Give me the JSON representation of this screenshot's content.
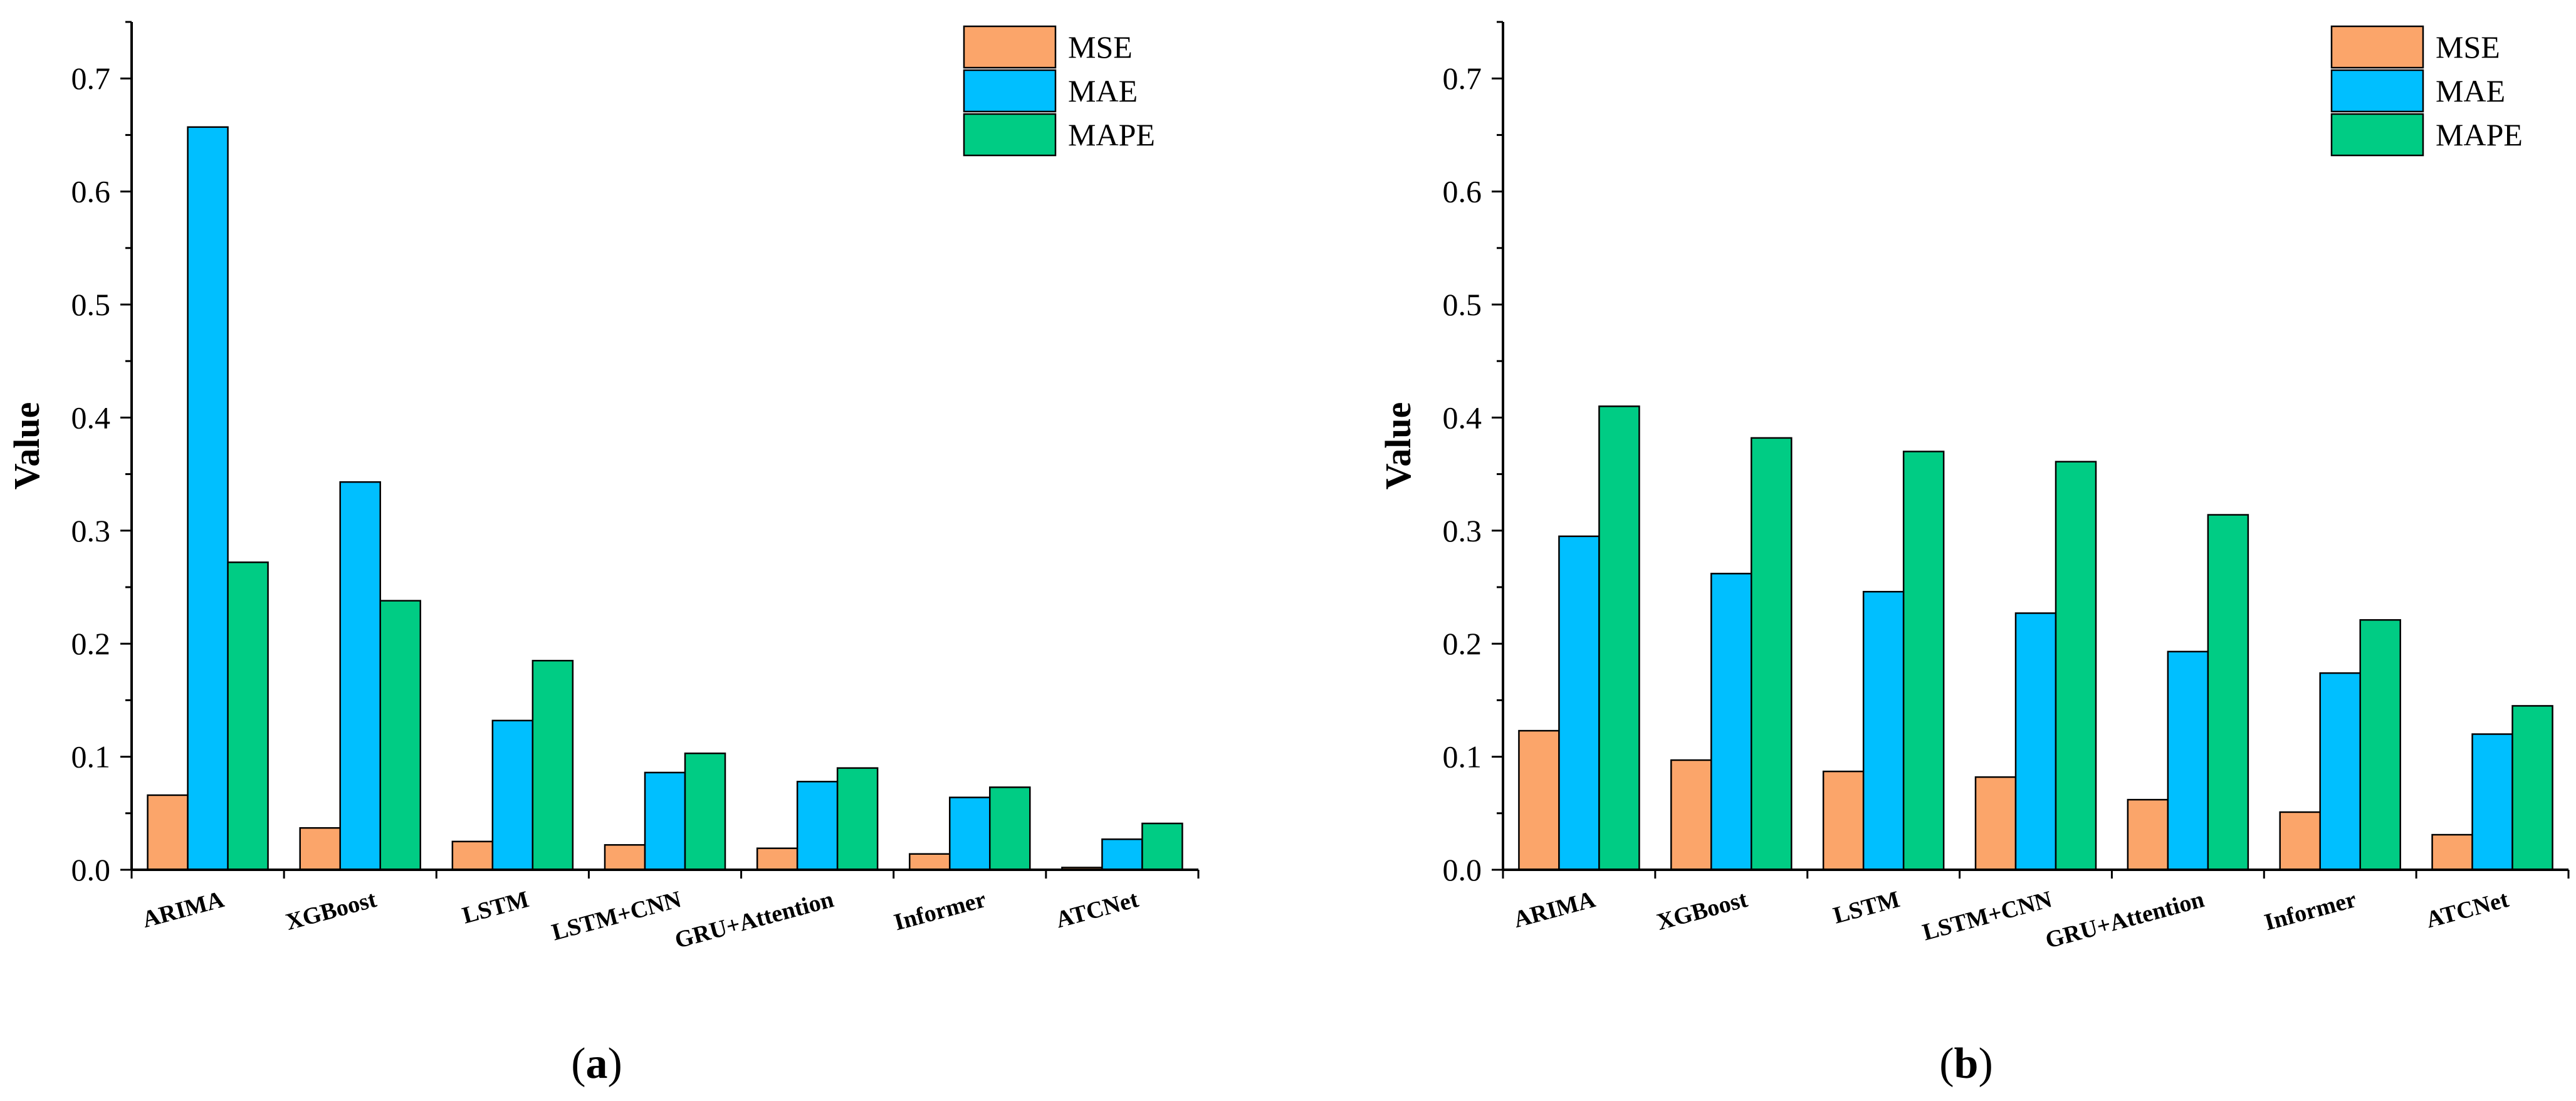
{
  "colors": {
    "MSE": "#FBA56A",
    "MAE": "#00BFFF",
    "MAPE": "#00CC84"
  },
  "chart_data": [
    {
      "type": "bar",
      "caption_letter": "a",
      "categories": [
        "ARIMA",
        "XGBoost",
        "LSTM",
        "LSTM+CNN",
        "GRU+Attention",
        "Informer",
        "ATCNet"
      ],
      "series": [
        {
          "name": "MSE",
          "values": [
            0.066,
            0.037,
            0.025,
            0.022,
            0.019,
            0.014,
            0.002
          ]
        },
        {
          "name": "MAE",
          "values": [
            0.657,
            0.343,
            0.132,
            0.086,
            0.078,
            0.064,
            0.027
          ]
        },
        {
          "name": "MAPE",
          "values": [
            0.272,
            0.238,
            0.185,
            0.103,
            0.09,
            0.073,
            0.041
          ]
        }
      ],
      "ylabel": "Value",
      "xlabel": "",
      "ylim": [
        0,
        0.75
      ],
      "yticks": [
        0.0,
        0.1,
        0.2,
        0.3,
        0.4,
        0.5,
        0.6,
        0.7
      ],
      "ytick_labels": [
        "0.0",
        "0.1",
        "0.2",
        "0.3",
        "0.4",
        "0.5",
        "0.6",
        "0.7"
      ],
      "legend": "top-right"
    },
    {
      "type": "bar",
      "caption_letter": "b",
      "categories": [
        "ARIMA",
        "XGBoost",
        "LSTM",
        "LSTM+CNN",
        "GRU+Attention",
        "Informer",
        "ATCNet"
      ],
      "series": [
        {
          "name": "MSE",
          "values": [
            0.123,
            0.097,
            0.087,
            0.082,
            0.062,
            0.051,
            0.031
          ]
        },
        {
          "name": "MAE",
          "values": [
            0.295,
            0.262,
            0.246,
            0.227,
            0.193,
            0.174,
            0.12
          ]
        },
        {
          "name": "MAPE",
          "values": [
            0.41,
            0.382,
            0.37,
            0.361,
            0.314,
            0.221,
            0.145
          ]
        }
      ],
      "ylabel": "Value",
      "xlabel": "",
      "ylim": [
        0,
        0.75
      ],
      "yticks": [
        0.0,
        0.1,
        0.2,
        0.3,
        0.4,
        0.5,
        0.6,
        0.7
      ],
      "ytick_labels": [
        "0.0",
        "0.1",
        "0.2",
        "0.3",
        "0.4",
        "0.5",
        "0.6",
        "0.7"
      ],
      "legend": "top-right"
    }
  ]
}
